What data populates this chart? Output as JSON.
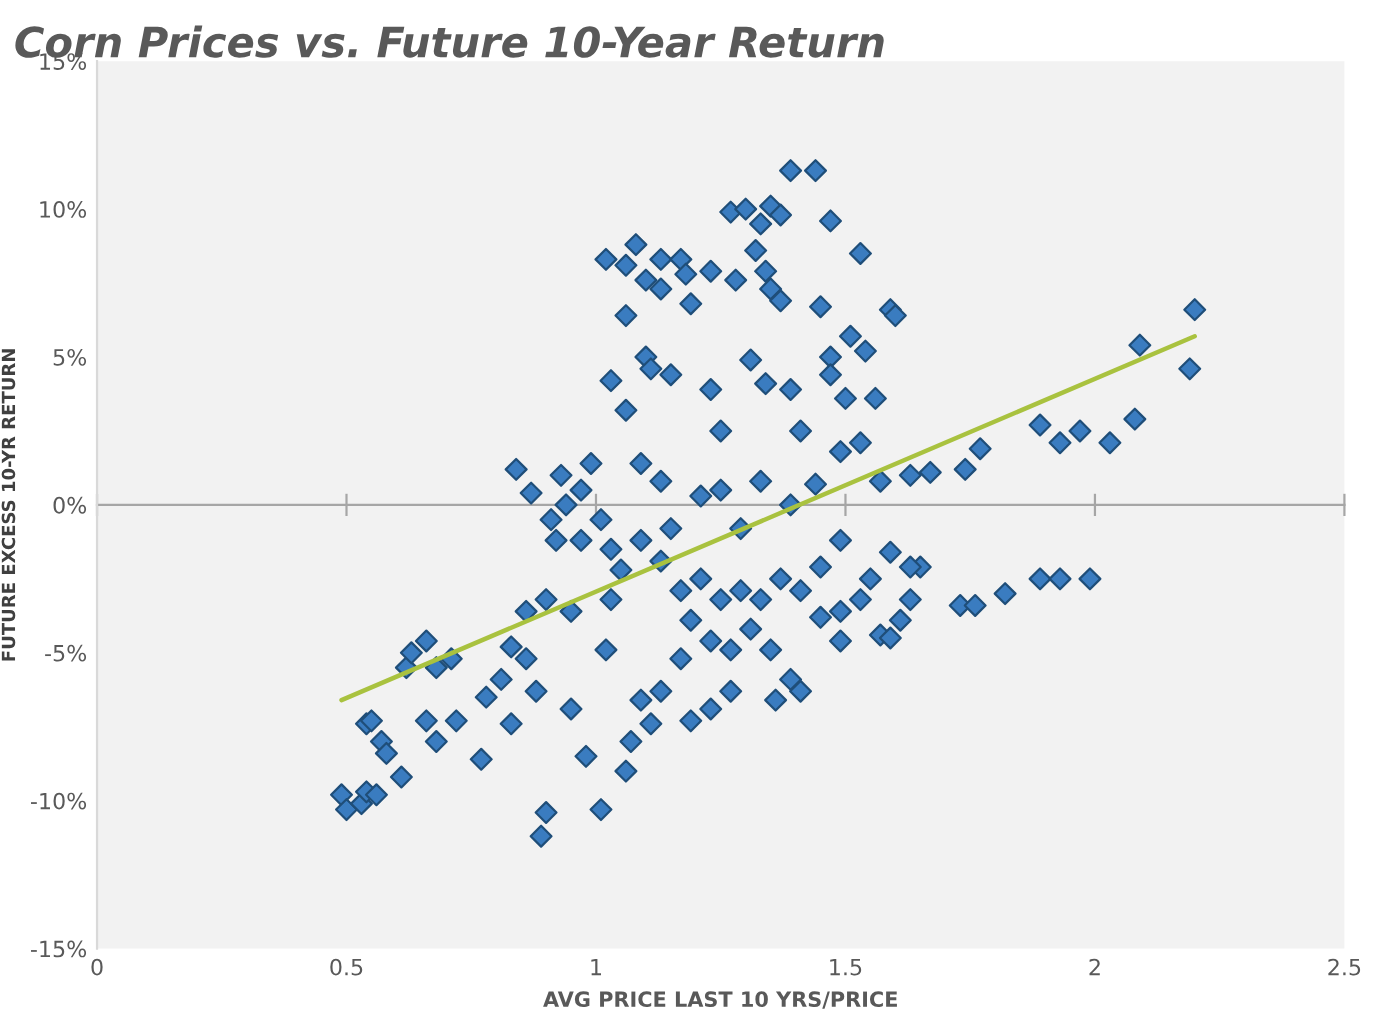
{
  "chart_data": {
    "type": "scatter",
    "title": "Corn Prices vs. Future 10-Year Return",
    "xlabel": "AVG PRICE LAST 10 YRS/PRICE",
    "ylabel": "FUTURE EXCESS 10-YR RETURN",
    "xlim": [
      0,
      2.5
    ],
    "xticks": [
      0,
      0.5,
      1,
      1.5,
      2,
      2.5
    ],
    "ylim": [
      -15,
      15
    ],
    "yticks": [
      {
        "value": -15,
        "label": "-15%"
      },
      {
        "value": -10,
        "label": "-10%"
      },
      {
        "value": -5,
        "label": "-5%"
      },
      {
        "value": 0,
        "label": "0%"
      },
      {
        "value": 5,
        "label": "5%"
      },
      {
        "value": 10,
        "label": "10%"
      },
      {
        "value": 15,
        "label": "15%"
      }
    ],
    "legend": false,
    "marker": "diamond",
    "series": [
      {
        "color": "#3a7cc0",
        "x": [
          0.49,
          0.5,
          0.53,
          0.54,
          0.56,
          0.54,
          0.55,
          0.57,
          0.58,
          0.61,
          0.62,
          0.63,
          0.66,
          0.68,
          0.71,
          0.66,
          0.68,
          0.72,
          0.77,
          0.78,
          0.81,
          0.83,
          0.83,
          0.86,
          0.88,
          0.89,
          0.9,
          0.86,
          0.9,
          0.92,
          0.94,
          0.95,
          0.95,
          0.98,
          1.01,
          1.02,
          1.03,
          1.05,
          1.03,
          0.97,
          0.99,
          0.87,
          0.84,
          0.93,
          0.91,
          0.97,
          1.01,
          1.02,
          1.06,
          1.08,
          1.1,
          1.13,
          1.17,
          1.18,
          1.13,
          1.19,
          1.23,
          1.27,
          1.3,
          1.35,
          1.33,
          1.37,
          1.39,
          1.44,
          1.47,
          1.53,
          1.59,
          1.32,
          1.34,
          1.28,
          1.35,
          1.37,
          1.45,
          1.06,
          1.1,
          1.11,
          1.15,
          1.03,
          1.06,
          1.23,
          1.25,
          1.31,
          1.34,
          1.39,
          1.41,
          1.47,
          1.47,
          1.51,
          1.54,
          1.5,
          1.56,
          1.6,
          1.09,
          1.13,
          1.21,
          1.25,
          1.33,
          1.39,
          1.44,
          1.49,
          1.53,
          1.57,
          1.63,
          1.67,
          1.77,
          1.74,
          1.89,
          1.93,
          1.97,
          2.03,
          2.08,
          2.2,
          2.19,
          2.09,
          1.09,
          1.13,
          1.17,
          1.21,
          1.25,
          1.29,
          1.33,
          1.37,
          1.41,
          1.19,
          1.23,
          1.27,
          1.31,
          1.35,
          1.39,
          1.17,
          1.13,
          1.09,
          1.11,
          1.07,
          1.06,
          1.19,
          1.23,
          1.27,
          1.29,
          1.15,
          1.45,
          1.49,
          1.53,
          1.55,
          1.57,
          1.61,
          1.63,
          1.65,
          1.49,
          1.41,
          1.36,
          1.59,
          1.73,
          1.76,
          1.82,
          1.89,
          1.93,
          1.99,
          1.49,
          1.59,
          1.63,
          1.45
        ],
        "values": [
          -9.8,
          -10.3,
          -10.1,
          -9.7,
          -9.8,
          -7.4,
          -7.3,
          -8.0,
          -8.4,
          -9.2,
          -5.5,
          -5.0,
          -4.6,
          -5.5,
          -5.2,
          -7.3,
          -8.0,
          -7.3,
          -8.6,
          -6.5,
          -5.9,
          -7.4,
          -4.8,
          -5.2,
          -6.3,
          -11.2,
          -10.4,
          -3.6,
          -3.2,
          -1.2,
          0,
          -3.6,
          -6.9,
          -8.5,
          -10.3,
          -4.9,
          -3.2,
          -2.2,
          -1.5,
          0.5,
          1.4,
          0.4,
          1.2,
          1.0,
          -0.5,
          -1.2,
          -0.5,
          8.3,
          8.1,
          8.8,
          7.6,
          8.3,
          8.3,
          7.8,
          7.3,
          6.8,
          7.9,
          9.9,
          10.0,
          10.1,
          9.5,
          9.8,
          11.3,
          11.3,
          9.6,
          8.5,
          6.6,
          8.6,
          7.9,
          7.6,
          7.3,
          6.9,
          6.7,
          6.4,
          5.0,
          4.6,
          4.4,
          4.2,
          3.2,
          3.9,
          2.5,
          4.9,
          4.1,
          3.9,
          2.5,
          5.0,
          4.4,
          5.7,
          5.2,
          3.6,
          3.6,
          6.4,
          1.4,
          0.8,
          0.3,
          0.5,
          0.8,
          0,
          0.7,
          1.8,
          2.1,
          0.8,
          1.0,
          1.1,
          1.9,
          1.2,
          2.7,
          2.1,
          2.5,
          2.1,
          2.9,
          6.6,
          4.6,
          5.4,
          -1.2,
          -1.9,
          -2.9,
          -2.5,
          -3.2,
          -2.9,
          -3.2,
          -2.5,
          -2.9,
          -3.9,
          -4.6,
          -4.9,
          -4.2,
          -4.9,
          -5.9,
          -5.2,
          -6.3,
          -6.6,
          -7.4,
          -8.0,
          -9.0,
          -7.3,
          -6.9,
          -6.3,
          -0.8,
          -0.8,
          -3.8,
          -4.6,
          -3.2,
          -2.5,
          -4.4,
          -3.9,
          -3.2,
          -2.1,
          -3.6,
          -6.3,
          -6.6,
          -4.5,
          -3.4,
          -3.4,
          -3.0,
          -2.5,
          -2.5,
          -2.5,
          -1.2,
          -1.6,
          -2.1,
          -2.1
        ]
      },
      {
        "type": "line",
        "color": "#a9c23f",
        "marker": "none",
        "x": [
          0.49,
          2.2
        ],
        "values": [
          -6.6,
          5.7
        ]
      }
    ]
  }
}
